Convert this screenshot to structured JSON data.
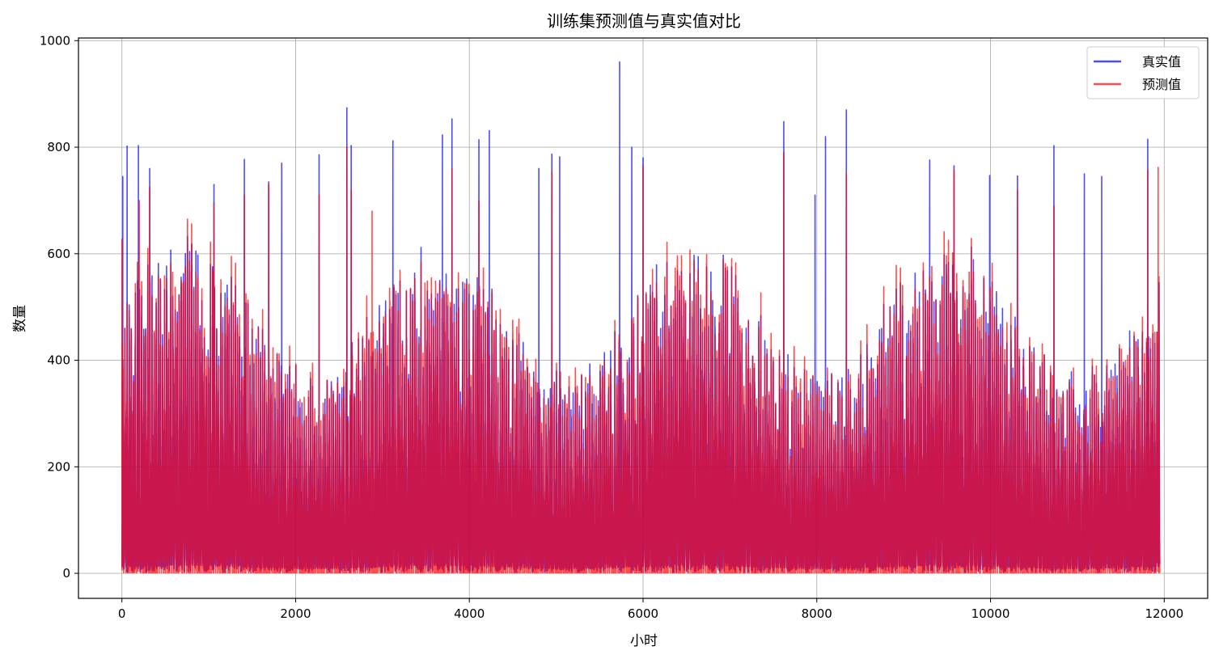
{
  "chart_data": {
    "type": "line",
    "title": "训练集预测值与真实值对比",
    "xlabel": "小时",
    "ylabel": "数量",
    "xlim": [
      -500,
      12500
    ],
    "ylim": [
      -47,
      1005
    ],
    "xticks": [
      0,
      2000,
      4000,
      6000,
      8000,
      10000,
      12000
    ],
    "yticks": [
      0,
      200,
      400,
      600,
      800,
      1000
    ],
    "grid": true,
    "legend_position": "top-right",
    "n_points": 11950,
    "series": [
      {
        "name": "真实值",
        "color": "#0000ff",
        "alpha": 0.7
      },
      {
        "name": "预测值",
        "color": "#ff0000",
        "alpha": 0.7
      }
    ],
    "peaks_actual": [
      [
        10,
        745
      ],
      [
        60,
        802
      ],
      [
        190,
        803
      ],
      [
        320,
        760
      ],
      [
        1060,
        730
      ],
      [
        1410,
        777
      ],
      [
        1690,
        735
      ],
      [
        1840,
        770
      ],
      [
        2270,
        786
      ],
      [
        2590,
        874
      ],
      [
        2640,
        803
      ],
      [
        3120,
        812
      ],
      [
        3690,
        823
      ],
      [
        3800,
        853
      ],
      [
        4110,
        814
      ],
      [
        4230,
        831
      ],
      [
        4800,
        760
      ],
      [
        4950,
        787
      ],
      [
        5040,
        782
      ],
      [
        5730,
        960
      ],
      [
        5870,
        800
      ],
      [
        6000,
        780
      ],
      [
        7620,
        848
      ],
      [
        7980,
        710
      ],
      [
        8100,
        820
      ],
      [
        8340,
        870
      ],
      [
        9300,
        776
      ],
      [
        9580,
        765
      ],
      [
        9990,
        747
      ],
      [
        10310,
        746
      ],
      [
        10730,
        803
      ],
      [
        11080,
        750
      ],
      [
        11280,
        745
      ],
      [
        11810,
        815
      ]
    ],
    "peaks_predicted": [
      [
        0,
        628
      ],
      [
        200,
        700
      ],
      [
        320,
        725
      ],
      [
        1060,
        695
      ],
      [
        1410,
        710
      ],
      [
        1690,
        730
      ],
      [
        2270,
        710
      ],
      [
        2590,
        800
      ],
      [
        2640,
        720
      ],
      [
        2880,
        680
      ],
      [
        3800,
        760
      ],
      [
        4110,
        700
      ],
      [
        4950,
        755
      ],
      [
        6000,
        765
      ],
      [
        7620,
        790
      ],
      [
        8340,
        750
      ],
      [
        9580,
        757
      ],
      [
        10310,
        720
      ],
      [
        10730,
        690
      ],
      [
        11810,
        757
      ],
      [
        11930,
        762
      ]
    ]
  }
}
